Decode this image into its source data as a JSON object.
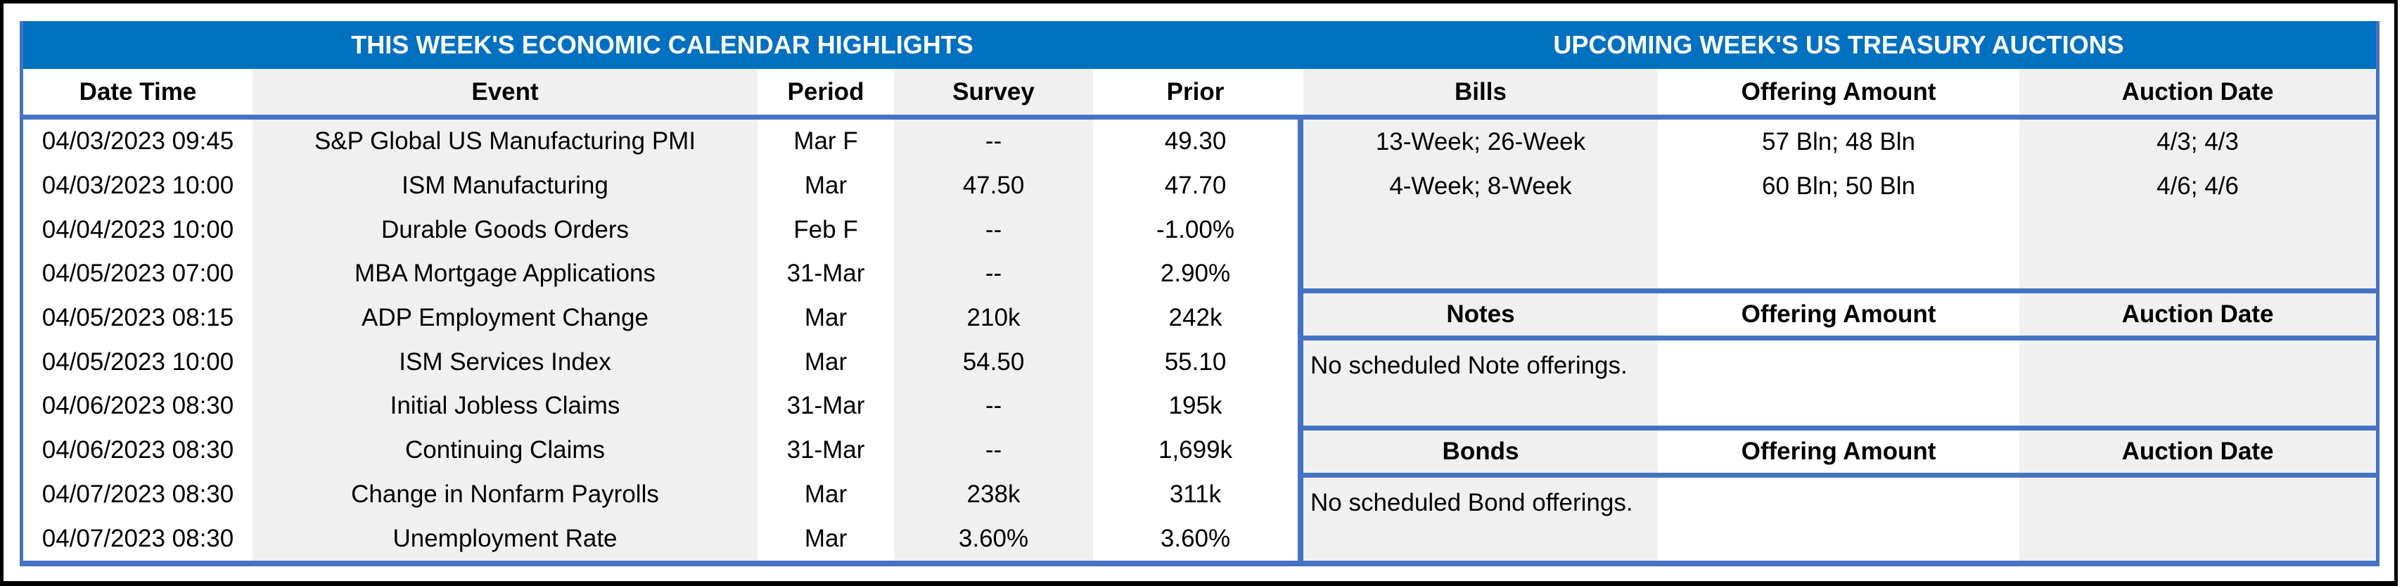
{
  "page": {
    "left_title": "THIS WEEK'S ECONOMIC CALENDAR HIGHLIGHTS",
    "right_title": "UPCOMING WEEK'S US TREASURY AUCTIONS"
  },
  "colors": {
    "title_bar_blue": "#0070C0",
    "grid_line_blue": "#4472C4",
    "shaded_column_gray": "#F0F0F0",
    "frame_black": "#000000",
    "title_text": "#FFFFFF",
    "body_text": "#000000"
  },
  "calendar": {
    "headers": [
      "Date Time",
      "Event",
      "Period",
      "Survey",
      "Prior"
    ],
    "rows": [
      {
        "date_time": "04/03/2023 09:45",
        "event": "S&P Global US Manufacturing PMI",
        "period": "Mar F",
        "survey": "--",
        "prior": "49.30"
      },
      {
        "date_time": "04/03/2023 10:00",
        "event": "ISM Manufacturing",
        "period": "Mar",
        "survey": "47.50",
        "prior": "47.70"
      },
      {
        "date_time": "04/04/2023 10:00",
        "event": "Durable Goods Orders",
        "period": "Feb F",
        "survey": "--",
        "prior": "-1.00%"
      },
      {
        "date_time": "04/05/2023 07:00",
        "event": "MBA Mortgage Applications",
        "period": "31-Mar",
        "survey": "--",
        "prior": "2.90%"
      },
      {
        "date_time": "04/05/2023 08:15",
        "event": "ADP Employment Change",
        "period": "Mar",
        "survey": "210k",
        "prior": "242k"
      },
      {
        "date_time": "04/05/2023 10:00",
        "event": "ISM Services Index",
        "period": "Mar",
        "survey": "54.50",
        "prior": "55.10"
      },
      {
        "date_time": "04/06/2023 08:30",
        "event": "Initial Jobless Claims",
        "period": "31-Mar",
        "survey": "--",
        "prior": "195k"
      },
      {
        "date_time": "04/06/2023 08:30",
        "event": "Continuing Claims",
        "period": "31-Mar",
        "survey": "--",
        "prior": "1,699k"
      },
      {
        "date_time": "04/07/2023 08:30",
        "event": "Change in Nonfarm Payrolls",
        "period": "Mar",
        "survey": "238k",
        "prior": "311k"
      },
      {
        "date_time": "04/07/2023 08:30",
        "event": "Unemployment Rate",
        "period": "Mar",
        "survey": "3.60%",
        "prior": "3.60%"
      }
    ]
  },
  "auctions": {
    "bills": {
      "headers": [
        "Bills",
        "Offering Amount",
        "Auction Date"
      ],
      "rows": [
        {
          "security": "13-Week; 26-Week",
          "offering_amount": "57 Bln; 48 Bln",
          "auction_date": "4/3; 4/3"
        },
        {
          "security": "4-Week; 8-Week",
          "offering_amount": "60 Bln; 50 Bln",
          "auction_date": "4/6; 4/6"
        }
      ]
    },
    "notes": {
      "headers": [
        "Notes",
        "Offering Amount",
        "Auction Date"
      ],
      "empty_message": "No scheduled Note offerings."
    },
    "bonds": {
      "headers": [
        "Bonds",
        "Offering Amount",
        "Auction Date"
      ],
      "empty_message": "No scheduled Bond offerings."
    }
  }
}
